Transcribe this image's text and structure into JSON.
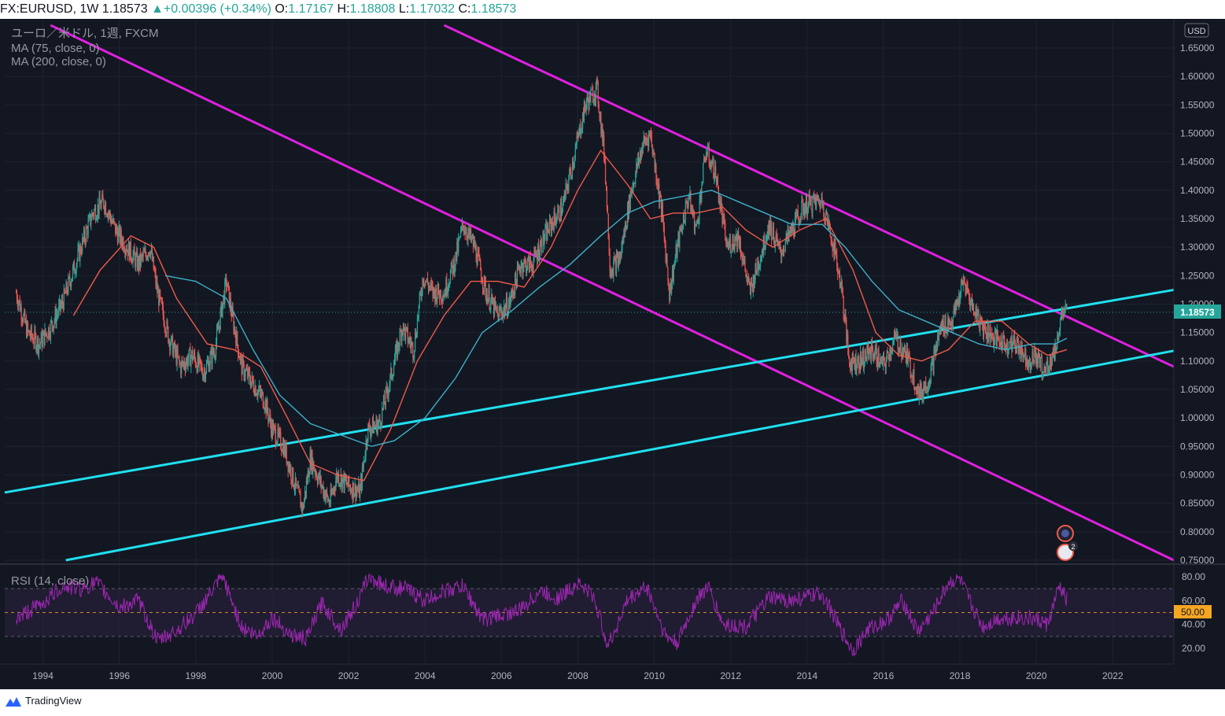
{
  "header": {
    "symbol_line": "FX:EURUSD, 1W 1.18573",
    "change": "▲+0.00396 (+0.34%)",
    "o_label": "O:",
    "o_value": "1.17167",
    "h_label": "H:",
    "h_value": "1.18808",
    "l_label": "L:",
    "l_value": "1.17032",
    "c_label": "C:",
    "c_value": "1.18573"
  },
  "legend": {
    "title": "ユーロ／米ドル, 1週, FXCM",
    "ma75": "MA (75, close, 0)",
    "ma200": "MA (200, close, 0)",
    "rsi": "RSI (14, close)"
  },
  "currency_button": "USD",
  "price_tag": "1.18573",
  "rsi_tag": "50.00",
  "flag_badge": "2",
  "branding": "TradingView",
  "colors": {
    "background": "#131722",
    "up": "#26a69a",
    "down": "#ef5350",
    "ma75": "#f05a4a",
    "ma200": "#3db0c8",
    "trend_magenta": "#e020e0",
    "trend_cyan": "#20e0f0",
    "rsi_line": "#9c27b0",
    "rsi_band": "#2a1f3d",
    "price_tag": "#26a69a",
    "rsi_tag": "#f5a623"
  },
  "chart_data": [
    {
      "type": "candlestick",
      "title": "ユーロ／米ドル, 1週, FXCM",
      "x_ticks": [
        "1994",
        "1996",
        "1998",
        "2000",
        "2002",
        "2004",
        "2006",
        "2008",
        "2010",
        "2012",
        "2014",
        "2016",
        "2018",
        "2020",
        "2022"
      ],
      "y_ticks": [
        "1.65000",
        "1.60000",
        "1.55000",
        "1.50000",
        "1.45000",
        "1.40000",
        "1.35000",
        "1.30000",
        "1.25000",
        "1.20000",
        "1.15000",
        "1.10000",
        "1.05000",
        "1.00000",
        "0.95000",
        "0.90000",
        "0.85000",
        "0.80000",
        "0.75000"
      ],
      "ylim": [
        0.75,
        1.65
      ],
      "xlim": [
        1993.0,
        2023.6
      ],
      "last_price": 1.18573,
      "price_path": [
        [
          1993.3,
          1.22
        ],
        [
          1993.6,
          1.15
        ],
        [
          1993.9,
          1.13
        ],
        [
          1994.2,
          1.16
        ],
        [
          1994.5,
          1.2
        ],
        [
          1994.9,
          1.28
        ],
        [
          1995.3,
          1.36
        ],
        [
          1995.6,
          1.38
        ],
        [
          1995.9,
          1.33
        ],
        [
          1996.2,
          1.3
        ],
        [
          1996.5,
          1.27
        ],
        [
          1996.8,
          1.3
        ],
        [
          1997.0,
          1.22
        ],
        [
          1997.3,
          1.14
        ],
        [
          1997.6,
          1.09
        ],
        [
          1997.9,
          1.11
        ],
        [
          1998.2,
          1.08
        ],
        [
          1998.5,
          1.12
        ],
        [
          1998.8,
          1.24
        ],
        [
          1998.95,
          1.18
        ],
        [
          1999.2,
          1.09
        ],
        [
          1999.5,
          1.06
        ],
        [
          1999.8,
          1.03
        ],
        [
          2000.0,
          0.98
        ],
        [
          2000.3,
          0.95
        ],
        [
          2000.6,
          0.88
        ],
        [
          2000.8,
          0.84
        ],
        [
          2001.0,
          0.93
        ],
        [
          2001.3,
          0.88
        ],
        [
          2001.5,
          0.85
        ],
        [
          2001.7,
          0.9
        ],
        [
          2002.0,
          0.88
        ],
        [
          2002.3,
          0.87
        ],
        [
          2002.5,
          0.98
        ],
        [
          2002.8,
          0.99
        ],
        [
          2003.1,
          1.07
        ],
        [
          2003.4,
          1.16
        ],
        [
          2003.7,
          1.12
        ],
        [
          2003.95,
          1.25
        ],
        [
          2004.2,
          1.22
        ],
        [
          2004.5,
          1.22
        ],
        [
          2004.8,
          1.28
        ],
        [
          2005.0,
          1.34
        ],
        [
          2005.3,
          1.3
        ],
        [
          2005.6,
          1.22
        ],
        [
          2005.9,
          1.18
        ],
        [
          2006.2,
          1.2
        ],
        [
          2006.5,
          1.27
        ],
        [
          2006.8,
          1.27
        ],
        [
          2007.0,
          1.3
        ],
        [
          2007.3,
          1.34
        ],
        [
          2007.6,
          1.37
        ],
        [
          2007.9,
          1.46
        ],
        [
          2008.2,
          1.55
        ],
        [
          2008.5,
          1.58
        ],
        [
          2008.7,
          1.46
        ],
        [
          2008.85,
          1.26
        ],
        [
          2009.1,
          1.28
        ],
        [
          2009.4,
          1.4
        ],
        [
          2009.7,
          1.48
        ],
        [
          2009.9,
          1.5
        ],
        [
          2010.2,
          1.36
        ],
        [
          2010.4,
          1.22
        ],
        [
          2010.6,
          1.3
        ],
        [
          2010.9,
          1.39
        ],
        [
          2011.1,
          1.33
        ],
        [
          2011.35,
          1.47
        ],
        [
          2011.6,
          1.43
        ],
        [
          2011.9,
          1.3
        ],
        [
          2012.2,
          1.32
        ],
        [
          2012.5,
          1.22
        ],
        [
          2012.8,
          1.29
        ],
        [
          2013.0,
          1.34
        ],
        [
          2013.3,
          1.29
        ],
        [
          2013.6,
          1.33
        ],
        [
          2013.9,
          1.37
        ],
        [
          2014.2,
          1.38
        ],
        [
          2014.4,
          1.38
        ],
        [
          2014.7,
          1.3
        ],
        [
          2014.9,
          1.23
        ],
        [
          2015.1,
          1.1
        ],
        [
          2015.4,
          1.1
        ],
        [
          2015.7,
          1.12
        ],
        [
          2016.0,
          1.09
        ],
        [
          2016.3,
          1.14
        ],
        [
          2016.6,
          1.11
        ],
        [
          2016.95,
          1.04
        ],
        [
          2017.2,
          1.07
        ],
        [
          2017.5,
          1.16
        ],
        [
          2017.8,
          1.17
        ],
        [
          2018.1,
          1.24
        ],
        [
          2018.3,
          1.2
        ],
        [
          2018.6,
          1.16
        ],
        [
          2018.9,
          1.14
        ],
        [
          2019.2,
          1.13
        ],
        [
          2019.5,
          1.13
        ],
        [
          2019.8,
          1.1
        ],
        [
          2020.0,
          1.11
        ],
        [
          2020.2,
          1.08
        ],
        [
          2020.5,
          1.12
        ],
        [
          2020.65,
          1.18
        ],
        [
          2020.8,
          1.18573
        ]
      ],
      "series": [
        {
          "name": "MA (75, close, 0)",
          "points": [
            [
              1994.8,
              1.18
            ],
            [
              1995.5,
              1.26
            ],
            [
              1996.3,
              1.32
            ],
            [
              1996.9,
              1.3
            ],
            [
              1997.5,
              1.21
            ],
            [
              1998.3,
              1.13
            ],
            [
              1999.0,
              1.12
            ],
            [
              1999.7,
              1.09
            ],
            [
              2000.4,
              1.0
            ],
            [
              2001.0,
              0.92
            ],
            [
              2001.7,
              0.9
            ],
            [
              2002.4,
              0.89
            ],
            [
              2003.1,
              0.98
            ],
            [
              2003.8,
              1.1
            ],
            [
              2004.5,
              1.18
            ],
            [
              2005.2,
              1.24
            ],
            [
              2005.9,
              1.24
            ],
            [
              2006.6,
              1.23
            ],
            [
              2007.3,
              1.3
            ],
            [
              2008.0,
              1.4
            ],
            [
              2008.6,
              1.47
            ],
            [
              2009.3,
              1.41
            ],
            [
              2009.9,
              1.35
            ],
            [
              2010.5,
              1.36
            ],
            [
              2011.1,
              1.36
            ],
            [
              2011.8,
              1.37
            ],
            [
              2012.4,
              1.33
            ],
            [
              2013.1,
              1.3
            ],
            [
              2013.8,
              1.33
            ],
            [
              2014.5,
              1.35
            ],
            [
              2015.2,
              1.26
            ],
            [
              2015.8,
              1.15
            ],
            [
              2016.4,
              1.11
            ],
            [
              2017.0,
              1.1
            ],
            [
              2017.7,
              1.12
            ],
            [
              2018.4,
              1.17
            ],
            [
              2019.1,
              1.17
            ],
            [
              2019.8,
              1.13
            ],
            [
              2020.3,
              1.11
            ],
            [
              2020.8,
              1.12
            ]
          ]
        },
        {
          "name": "MA (200, close, 0)",
          "points": [
            [
              1997.2,
              1.25
            ],
            [
              1998.0,
              1.24
            ],
            [
              1998.8,
              1.21
            ],
            [
              1999.5,
              1.12
            ],
            [
              2000.2,
              1.04
            ],
            [
              2001.0,
              0.99
            ],
            [
              2001.8,
              0.97
            ],
            [
              2002.6,
              0.95
            ],
            [
              2003.2,
              0.96
            ],
            [
              2004.0,
              1.0
            ],
            [
              2004.8,
              1.07
            ],
            [
              2005.5,
              1.15
            ],
            [
              2006.3,
              1.19
            ],
            [
              2007.0,
              1.23
            ],
            [
              2007.8,
              1.27
            ],
            [
              2008.6,
              1.32
            ],
            [
              2009.3,
              1.36
            ],
            [
              2010.0,
              1.38
            ],
            [
              2010.8,
              1.39
            ],
            [
              2011.5,
              1.4
            ],
            [
              2012.2,
              1.38
            ],
            [
              2012.9,
              1.36
            ],
            [
              2013.6,
              1.34
            ],
            [
              2014.4,
              1.34
            ],
            [
              2015.0,
              1.3
            ],
            [
              2015.7,
              1.24
            ],
            [
              2016.4,
              1.19
            ],
            [
              2017.1,
              1.17
            ],
            [
              2017.8,
              1.15
            ],
            [
              2018.5,
              1.13
            ],
            [
              2019.2,
              1.12
            ],
            [
              2019.9,
              1.13
            ],
            [
              2020.5,
              1.13
            ],
            [
              2020.8,
              1.14
            ]
          ]
        }
      ],
      "trendlines": [
        {
          "color": "magenta",
          "from": [
            1994.2,
            1.69
          ],
          "to": [
            2023.6,
            0.75
          ]
        },
        {
          "color": "magenta",
          "from": [
            2004.5,
            1.69
          ],
          "to": [
            2023.6,
            1.09
          ]
        },
        {
          "color": "cyan",
          "from": [
            1993.0,
            0.869
          ],
          "to": [
            2023.6,
            1.225
          ]
        },
        {
          "color": "cyan",
          "from": [
            1994.6,
            0.75
          ],
          "to": [
            2023.6,
            1.118
          ]
        }
      ]
    },
    {
      "type": "line",
      "title": "RSI (14, close)",
      "y_ticks": [
        "80.00",
        "60.00",
        "40.00",
        "20.00"
      ],
      "ylim": [
        10,
        85
      ],
      "bands": [
        30,
        50,
        70
      ],
      "last_value": 60,
      "points": [
        [
          1993.3,
          45
        ],
        [
          1994.0,
          58
        ],
        [
          1994.5,
          72
        ],
        [
          1995.0,
          70
        ],
        [
          1995.4,
          75
        ],
        [
          1996.0,
          54
        ],
        [
          1996.5,
          60
        ],
        [
          1997.0,
          26
        ],
        [
          1997.5,
          35
        ],
        [
          1998.0,
          49
        ],
        [
          1998.7,
          80
        ],
        [
          1999.2,
          38
        ],
        [
          1999.6,
          30
        ],
        [
          2000.0,
          46
        ],
        [
          2000.5,
          31
        ],
        [
          2000.9,
          28
        ],
        [
          2001.3,
          58
        ],
        [
          2001.8,
          36
        ],
        [
          2002.3,
          62
        ],
        [
          2002.5,
          80
        ],
        [
          2003.0,
          72
        ],
        [
          2003.5,
          70
        ],
        [
          2004.0,
          60
        ],
        [
          2004.5,
          68
        ],
        [
          2005.0,
          72
        ],
        [
          2005.5,
          44
        ],
        [
          2006.0,
          48
        ],
        [
          2006.5,
          52
        ],
        [
          2007.0,
          68
        ],
        [
          2007.5,
          62
        ],
        [
          2008.0,
          75
        ],
        [
          2008.4,
          64
        ],
        [
          2008.8,
          22
        ],
        [
          2009.3,
          60
        ],
        [
          2009.8,
          72
        ],
        [
          2010.3,
          30
        ],
        [
          2010.6,
          24
        ],
        [
          2011.1,
          60
        ],
        [
          2011.4,
          72
        ],
        [
          2011.8,
          40
        ],
        [
          2012.4,
          38
        ],
        [
          2013.0,
          62
        ],
        [
          2013.6,
          60
        ],
        [
          2014.0,
          63
        ],
        [
          2014.4,
          66
        ],
        [
          2014.9,
          34
        ],
        [
          2015.2,
          18
        ],
        [
          2015.6,
          36
        ],
        [
          2016.1,
          44
        ],
        [
          2016.5,
          60
        ],
        [
          2016.9,
          34
        ],
        [
          2017.3,
          50
        ],
        [
          2017.7,
          75
        ],
        [
          2018.0,
          78
        ],
        [
          2018.3,
          56
        ],
        [
          2018.6,
          38
        ],
        [
          2019.0,
          45
        ],
        [
          2019.5,
          46
        ],
        [
          2020.0,
          44
        ],
        [
          2020.3,
          40
        ],
        [
          2020.6,
          72
        ],
        [
          2020.8,
          60
        ]
      ]
    }
  ]
}
